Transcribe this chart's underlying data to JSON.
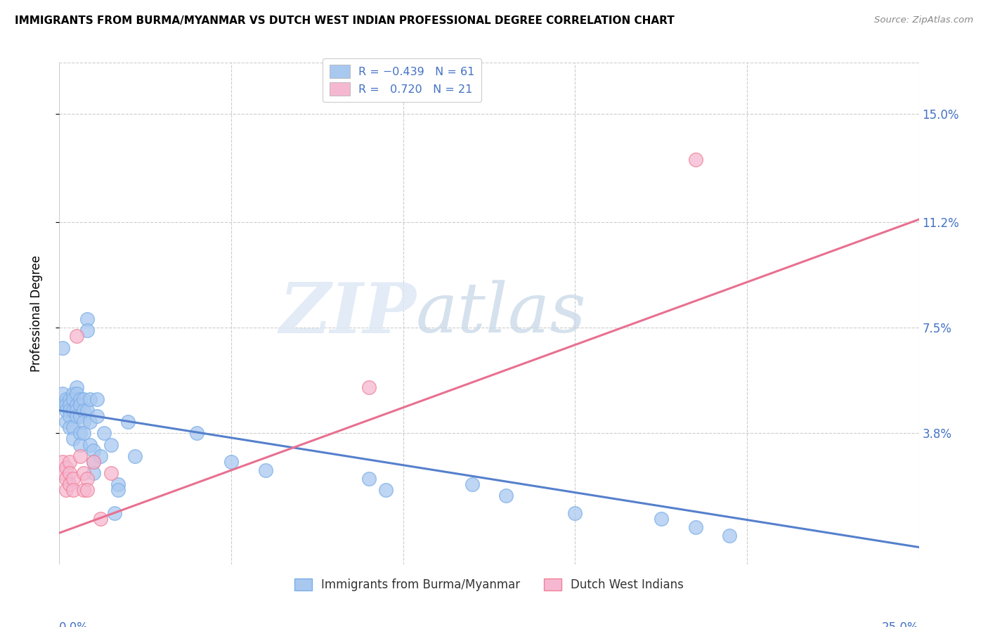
{
  "title": "IMMIGRANTS FROM BURMA/MYANMAR VS DUTCH WEST INDIAN PROFESSIONAL DEGREE CORRELATION CHART",
  "source": "Source: ZipAtlas.com",
  "ylabel": "Professional Degree",
  "ytick_labels": [
    "3.8%",
    "7.5%",
    "11.2%",
    "15.0%"
  ],
  "ytick_values": [
    0.038,
    0.075,
    0.112,
    0.15
  ],
  "xlim": [
    0.0,
    0.25
  ],
  "ylim": [
    -0.008,
    0.168
  ],
  "series1_name": "Immigrants from Burma/Myanmar",
  "series2_name": "Dutch West Indians",
  "series1_color": "#a8c8f0",
  "series2_color": "#f5b8d0",
  "series1_edge_color": "#7aaee8",
  "series2_edge_color": "#f08098",
  "series1_line_color": "#5580cc",
  "series2_line_color": "#e87090",
  "watermark_zip": "ZIP",
  "watermark_atlas": "atlas",
  "legend1_blue_color": "#a8c8f0",
  "legend1_pink_color": "#f5b8d0",
  "blue_scatter": [
    [
      0.001,
      0.068
    ],
    [
      0.001,
      0.052
    ],
    [
      0.001,
      0.048
    ],
    [
      0.002,
      0.05
    ],
    [
      0.002,
      0.048
    ],
    [
      0.002,
      0.046
    ],
    [
      0.002,
      0.042
    ],
    [
      0.003,
      0.05
    ],
    [
      0.003,
      0.048
    ],
    [
      0.003,
      0.046
    ],
    [
      0.003,
      0.044
    ],
    [
      0.003,
      0.04
    ],
    [
      0.004,
      0.052
    ],
    [
      0.004,
      0.05
    ],
    [
      0.004,
      0.046
    ],
    [
      0.004,
      0.04
    ],
    [
      0.004,
      0.036
    ],
    [
      0.005,
      0.054
    ],
    [
      0.005,
      0.052
    ],
    [
      0.005,
      0.048
    ],
    [
      0.005,
      0.046
    ],
    [
      0.005,
      0.044
    ],
    [
      0.006,
      0.05
    ],
    [
      0.006,
      0.048
    ],
    [
      0.006,
      0.044
    ],
    [
      0.006,
      0.038
    ],
    [
      0.006,
      0.034
    ],
    [
      0.007,
      0.05
    ],
    [
      0.007,
      0.046
    ],
    [
      0.007,
      0.042
    ],
    [
      0.007,
      0.038
    ],
    [
      0.008,
      0.078
    ],
    [
      0.008,
      0.074
    ],
    [
      0.008,
      0.046
    ],
    [
      0.009,
      0.05
    ],
    [
      0.009,
      0.042
    ],
    [
      0.009,
      0.034
    ],
    [
      0.01,
      0.032
    ],
    [
      0.01,
      0.028
    ],
    [
      0.01,
      0.024
    ],
    [
      0.011,
      0.05
    ],
    [
      0.011,
      0.044
    ],
    [
      0.012,
      0.03
    ],
    [
      0.013,
      0.038
    ],
    [
      0.015,
      0.034
    ],
    [
      0.016,
      0.01
    ],
    [
      0.017,
      0.02
    ],
    [
      0.017,
      0.018
    ],
    [
      0.02,
      0.042
    ],
    [
      0.022,
      0.03
    ],
    [
      0.04,
      0.038
    ],
    [
      0.05,
      0.028
    ],
    [
      0.06,
      0.025
    ],
    [
      0.09,
      0.022
    ],
    [
      0.095,
      0.018
    ],
    [
      0.12,
      0.02
    ],
    [
      0.13,
      0.016
    ],
    [
      0.15,
      0.01
    ],
    [
      0.175,
      0.008
    ],
    [
      0.185,
      0.005
    ],
    [
      0.195,
      0.002
    ]
  ],
  "pink_scatter": [
    [
      0.001,
      0.028
    ],
    [
      0.001,
      0.024
    ],
    [
      0.002,
      0.026
    ],
    [
      0.002,
      0.022
    ],
    [
      0.002,
      0.018
    ],
    [
      0.003,
      0.028
    ],
    [
      0.003,
      0.024
    ],
    [
      0.003,
      0.02
    ],
    [
      0.004,
      0.022
    ],
    [
      0.004,
      0.018
    ],
    [
      0.005,
      0.072
    ],
    [
      0.006,
      0.03
    ],
    [
      0.007,
      0.024
    ],
    [
      0.007,
      0.018
    ],
    [
      0.008,
      0.022
    ],
    [
      0.008,
      0.018
    ],
    [
      0.01,
      0.028
    ],
    [
      0.012,
      0.008
    ],
    [
      0.015,
      0.024
    ],
    [
      0.09,
      0.054
    ],
    [
      0.185,
      0.134
    ]
  ],
  "blue_line": [
    [
      0.0,
      0.046
    ],
    [
      0.25,
      -0.002
    ]
  ],
  "pink_line": [
    [
      0.0,
      0.003
    ],
    [
      0.25,
      0.113
    ]
  ]
}
